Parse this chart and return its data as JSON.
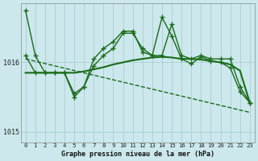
{
  "title": "Graphe pression niveau de la mer (hPa)",
  "bg_color": "#cce8ec",
  "grid_color": "#aacdd4",
  "line_color": "#1a6b1a",
  "xlim": [
    -0.5,
    23.5
  ],
  "ylim": [
    1014.85,
    1016.85
  ],
  "yticks": [
    1015,
    1016
  ],
  "xticks": [
    0,
    1,
    2,
    3,
    4,
    5,
    6,
    7,
    8,
    9,
    10,
    11,
    12,
    13,
    14,
    15,
    16,
    17,
    18,
    19,
    20,
    21,
    22,
    23
  ],
  "series": [
    {
      "x": [
        0,
        1,
        2,
        3,
        4,
        5,
        6,
        7,
        8,
        9,
        10,
        11,
        12,
        13,
        14,
        15,
        16,
        17,
        18,
        19,
        20,
        21,
        22,
        23
      ],
      "y": [
        1016.75,
        1016.1,
        1015.85,
        1015.85,
        1015.85,
        1015.55,
        1015.65,
        1016.05,
        1016.2,
        1016.3,
        1016.45,
        1016.45,
        1016.15,
        1016.1,
        1016.1,
        1016.55,
        1016.1,
        1016.05,
        1016.1,
        1016.05,
        1016.05,
        1016.05,
        1015.65,
        1015.42
      ],
      "marker": "+",
      "linewidth": 1.0,
      "markersize": 4,
      "linestyle": "-"
    },
    {
      "x": [
        0,
        1,
        2,
        3,
        4,
        5,
        6,
        7,
        8,
        9,
        10,
        11,
        12,
        13,
        14,
        15,
        16,
        17,
        18,
        19,
        20,
        21,
        22,
        23
      ],
      "y": [
        1016.1,
        1015.85,
        1015.85,
        1015.85,
        1015.85,
        1015.5,
        1015.65,
        1015.95,
        1016.1,
        1016.2,
        1016.42,
        1016.42,
        1016.2,
        1016.1,
        1016.65,
        1016.38,
        1016.05,
        1015.98,
        1016.08,
        1016.02,
        1016.0,
        1015.92,
        1015.58,
        1015.42
      ],
      "marker": "+",
      "linewidth": 1.0,
      "markersize": 4,
      "linestyle": "-"
    },
    {
      "x": [
        0,
        1,
        2,
        3,
        4,
        5,
        6,
        7,
        8,
        9,
        10,
        11,
        12,
        13,
        14,
        15,
        16,
        17,
        18,
        19,
        20,
        21,
        22,
        23
      ],
      "y": [
        1015.85,
        1015.85,
        1015.85,
        1015.85,
        1015.85,
        1015.85,
        1015.87,
        1015.9,
        1015.93,
        1015.97,
        1016.0,
        1016.03,
        1016.05,
        1016.07,
        1016.08,
        1016.07,
        1016.05,
        1016.05,
        1016.04,
        1016.02,
        1016.0,
        1015.97,
        1015.88,
        1015.42
      ],
      "marker": null,
      "linewidth": 1.5,
      "markersize": 0,
      "linestyle": "-"
    },
    {
      "x": [
        0,
        23
      ],
      "y": [
        1016.05,
        1015.28
      ],
      "marker": null,
      "linewidth": 1.0,
      "markersize": 0,
      "linestyle": "--"
    }
  ]
}
